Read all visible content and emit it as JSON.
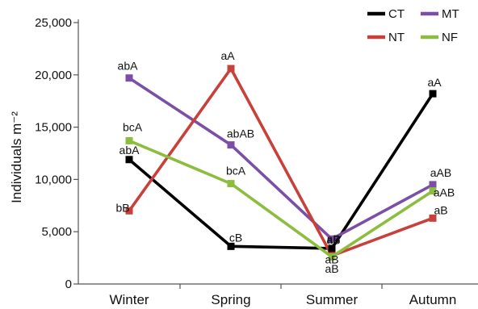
{
  "chart_data": {
    "type": "line",
    "categories": [
      "Winter",
      "Spring",
      "Summer",
      "Autumn"
    ],
    "ylabel": "Individuals m⁻²",
    "ylim": [
      0,
      25000
    ],
    "yticks": [
      0,
      5000,
      10000,
      15000,
      20000,
      25000
    ],
    "ytick_labels": [
      "0",
      "5,000",
      "10,000",
      "15,000",
      "20,000",
      "25,000"
    ],
    "grid": false,
    "legend_position": "top-right",
    "series": [
      {
        "name": "CT",
        "color": "#000000",
        "values": [
          11900,
          3600,
          3400,
          18200
        ],
        "labels": [
          "abA",
          "cB",
          "aB",
          "aA"
        ]
      },
      {
        "name": "MT",
        "color": "#7b4fa6",
        "values": [
          19700,
          13300,
          4300,
          9500
        ],
        "labels": [
          "abA",
          "abAB",
          "aB",
          "aAB"
        ]
      },
      {
        "name": "NT",
        "color": "#c9403a",
        "values": [
          7000,
          20600,
          2700,
          6300
        ],
        "labels": [
          "bB",
          "aA",
          "aB",
          "aB"
        ]
      },
      {
        "name": "NF",
        "color": "#8cbd3f",
        "values": [
          13700,
          9600,
          2600,
          8900
        ],
        "labels": [
          "bcA",
          "bcA",
          "aB",
          "aAB"
        ]
      }
    ]
  }
}
